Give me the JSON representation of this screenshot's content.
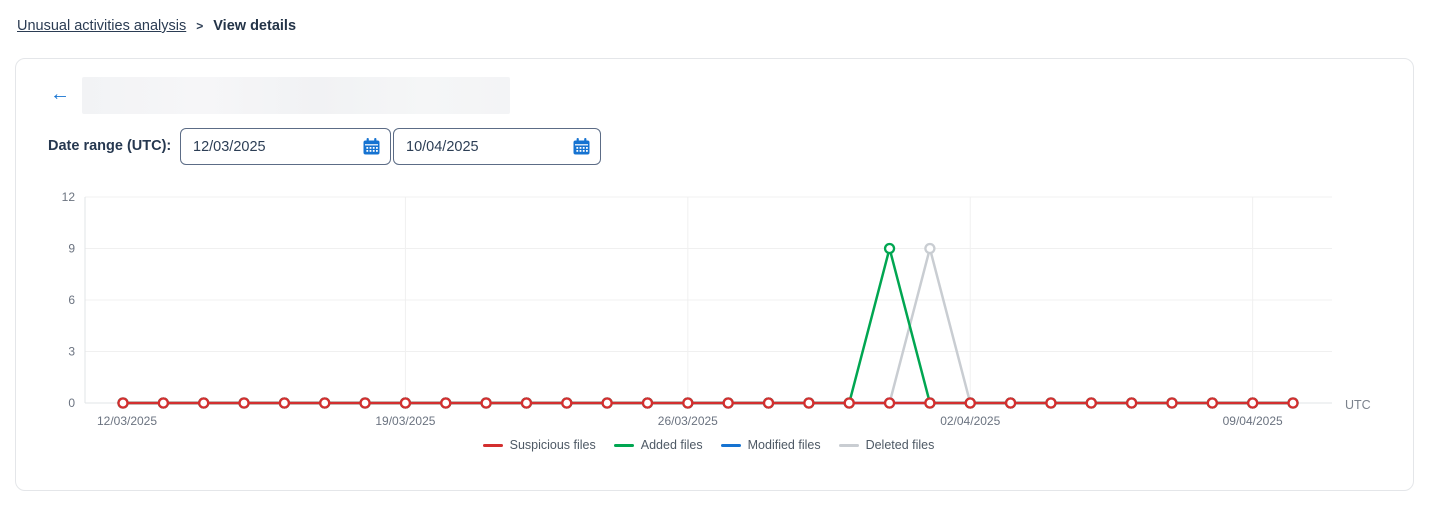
{
  "breadcrumb": {
    "parent_label": "Unusual activities analysis",
    "separator": ">",
    "current_label": "View details"
  },
  "header": {
    "back_icon": "←",
    "title_redacted": true
  },
  "date_range": {
    "label": "Date range (UTC):",
    "start_value": "12/03/2025",
    "end_value": "10/04/2025"
  },
  "colors": {
    "accent_blue": "#1673d1",
    "navy_text": "#263850",
    "suspicious_red": "#d32f2f",
    "added_green": "#00a651",
    "modified_blue": "#1673d1",
    "deleted_gray": "#c9cdd2",
    "grid_line": "#f0f0f0",
    "axis_line": "#e2e4e7"
  },
  "chart_data": {
    "type": "line",
    "title": "",
    "x_axis_suffix": "UTC",
    "ylim": [
      0,
      12
    ],
    "yticks": [
      0,
      3,
      6,
      9,
      12
    ],
    "grid": true,
    "legend_position": "bottom",
    "x": [
      "12/03/2025",
      "13/03/2025",
      "14/03/2025",
      "15/03/2025",
      "16/03/2025",
      "17/03/2025",
      "18/03/2025",
      "19/03/2025",
      "20/03/2025",
      "21/03/2025",
      "22/03/2025",
      "23/03/2025",
      "24/03/2025",
      "25/03/2025",
      "26/03/2025",
      "27/03/2025",
      "28/03/2025",
      "29/03/2025",
      "30/03/2025",
      "31/03/2025",
      "01/04/2025",
      "02/04/2025",
      "03/04/2025",
      "04/04/2025",
      "05/04/2025",
      "06/04/2025",
      "07/04/2025",
      "08/04/2025",
      "09/04/2025",
      "10/04/2025"
    ],
    "x_tick_indices": [
      0,
      7,
      14,
      21,
      28
    ],
    "series": [
      {
        "name": "Suspicious files",
        "color": "#d32f2f",
        "values": [
          0,
          0,
          0,
          0,
          0,
          0,
          0,
          0,
          0,
          0,
          0,
          0,
          0,
          0,
          0,
          0,
          0,
          0,
          0,
          0,
          0,
          0,
          0,
          0,
          0,
          0,
          0,
          0,
          0,
          0
        ]
      },
      {
        "name": "Added files",
        "color": "#00a651",
        "values": [
          0,
          0,
          0,
          0,
          0,
          0,
          0,
          0,
          0,
          0,
          0,
          0,
          0,
          0,
          0,
          0,
          0,
          0,
          0,
          9,
          0,
          0,
          0,
          0,
          0,
          0,
          0,
          0,
          0,
          0
        ]
      },
      {
        "name": "Modified files",
        "color": "#1673d1",
        "values": [
          0,
          0,
          0,
          0,
          0,
          0,
          0,
          0,
          0,
          0,
          0,
          0,
          0,
          0,
          0,
          0,
          0,
          0,
          0,
          0,
          0,
          0,
          0,
          0,
          0,
          0,
          0,
          0,
          0,
          0
        ]
      },
      {
        "name": "Deleted files",
        "color": "#c9cdd2",
        "values": [
          0,
          0,
          0,
          0,
          0,
          0,
          0,
          0,
          0,
          0,
          0,
          0,
          0,
          0,
          0,
          0,
          0,
          0,
          0,
          0,
          9,
          0,
          0,
          0,
          0,
          0,
          0,
          0,
          0,
          0
        ]
      }
    ]
  }
}
